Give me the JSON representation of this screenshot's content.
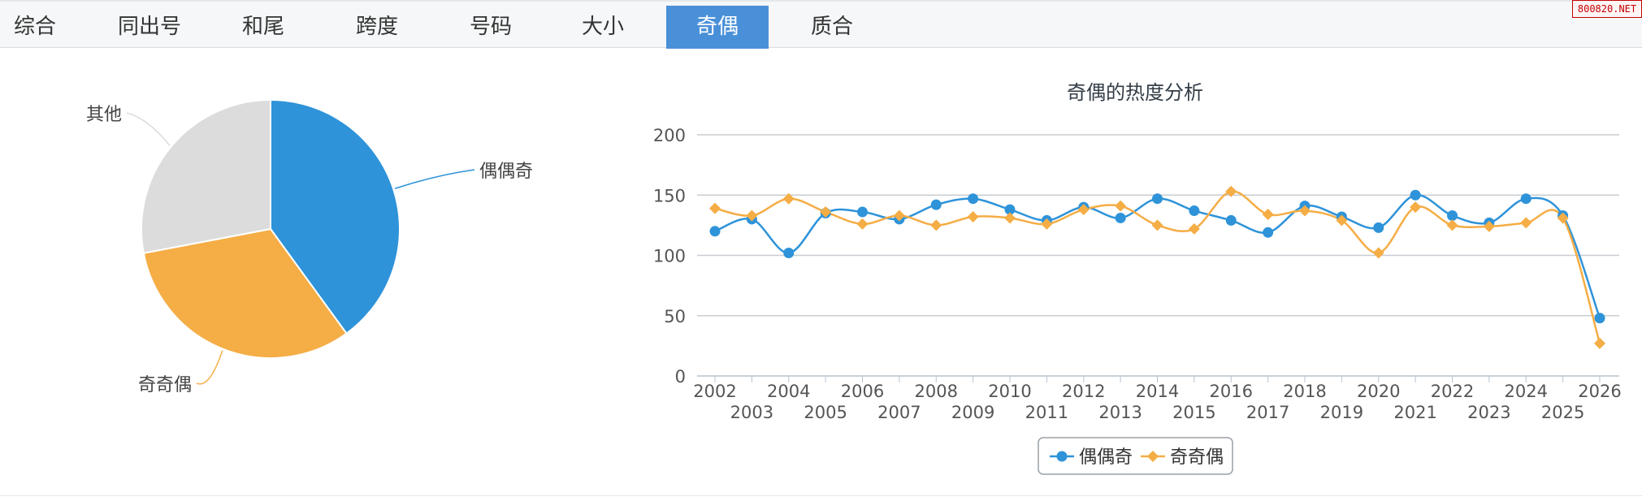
{
  "tabs": [
    {
      "label": "综合",
      "active": false
    },
    {
      "label": "同出号",
      "active": false
    },
    {
      "label": "和尾",
      "active": false
    },
    {
      "label": "跨度",
      "active": false
    },
    {
      "label": "号码",
      "active": false
    },
    {
      "label": "大小",
      "active": false
    },
    {
      "label": "奇偶",
      "active": true
    },
    {
      "label": "质合",
      "active": false
    }
  ],
  "watermark": "800820.NET",
  "colors": {
    "series_a": "#2e93d9",
    "series_b": "#f5ad45",
    "other": "#dcdcdc",
    "grid": "#c8ccd0",
    "active_tab": "#4a90d9"
  },
  "chart_data": [
    {
      "type": "pie",
      "slices": [
        {
          "label": "偶偶奇",
          "value": 40,
          "color": "#2e93d9"
        },
        {
          "label": "奇奇偶",
          "value": 32,
          "color": "#f5ad45"
        },
        {
          "label": "其他",
          "value": 28,
          "color": "#dcdcdc"
        }
      ]
    },
    {
      "type": "line",
      "title": "奇偶的热度分析",
      "ylim": [
        0,
        200
      ],
      "yticks": [
        0,
        50,
        100,
        150,
        200
      ],
      "grid": true,
      "legend_position": "bottom-center",
      "categories": [
        "2002",
        "2003",
        "2004",
        "2005",
        "2006",
        "2007",
        "2008",
        "2009",
        "2010",
        "2011",
        "2012",
        "2013",
        "2014",
        "2015",
        "2016",
        "2017",
        "2018",
        "2019",
        "2020",
        "2021",
        "2022",
        "2023",
        "2024",
        "2025",
        "2026"
      ],
      "series": [
        {
          "name": "偶偶奇",
          "color": "#2e93d9",
          "marker": "circle",
          "values": [
            120,
            130,
            102,
            135,
            136,
            130,
            142,
            147,
            138,
            129,
            140,
            131,
            147,
            137,
            129,
            119,
            141,
            132,
            123,
            150,
            133,
            127,
            147,
            133,
            48
          ]
        },
        {
          "name": "奇奇偶",
          "color": "#f5ad45",
          "marker": "diamond",
          "values": [
            139,
            133,
            147,
            136,
            126,
            133,
            125,
            132,
            131,
            126,
            138,
            141,
            125,
            122,
            153,
            134,
            137,
            129,
            102,
            140,
            125,
            124,
            127,
            131,
            27
          ]
        }
      ]
    }
  ]
}
